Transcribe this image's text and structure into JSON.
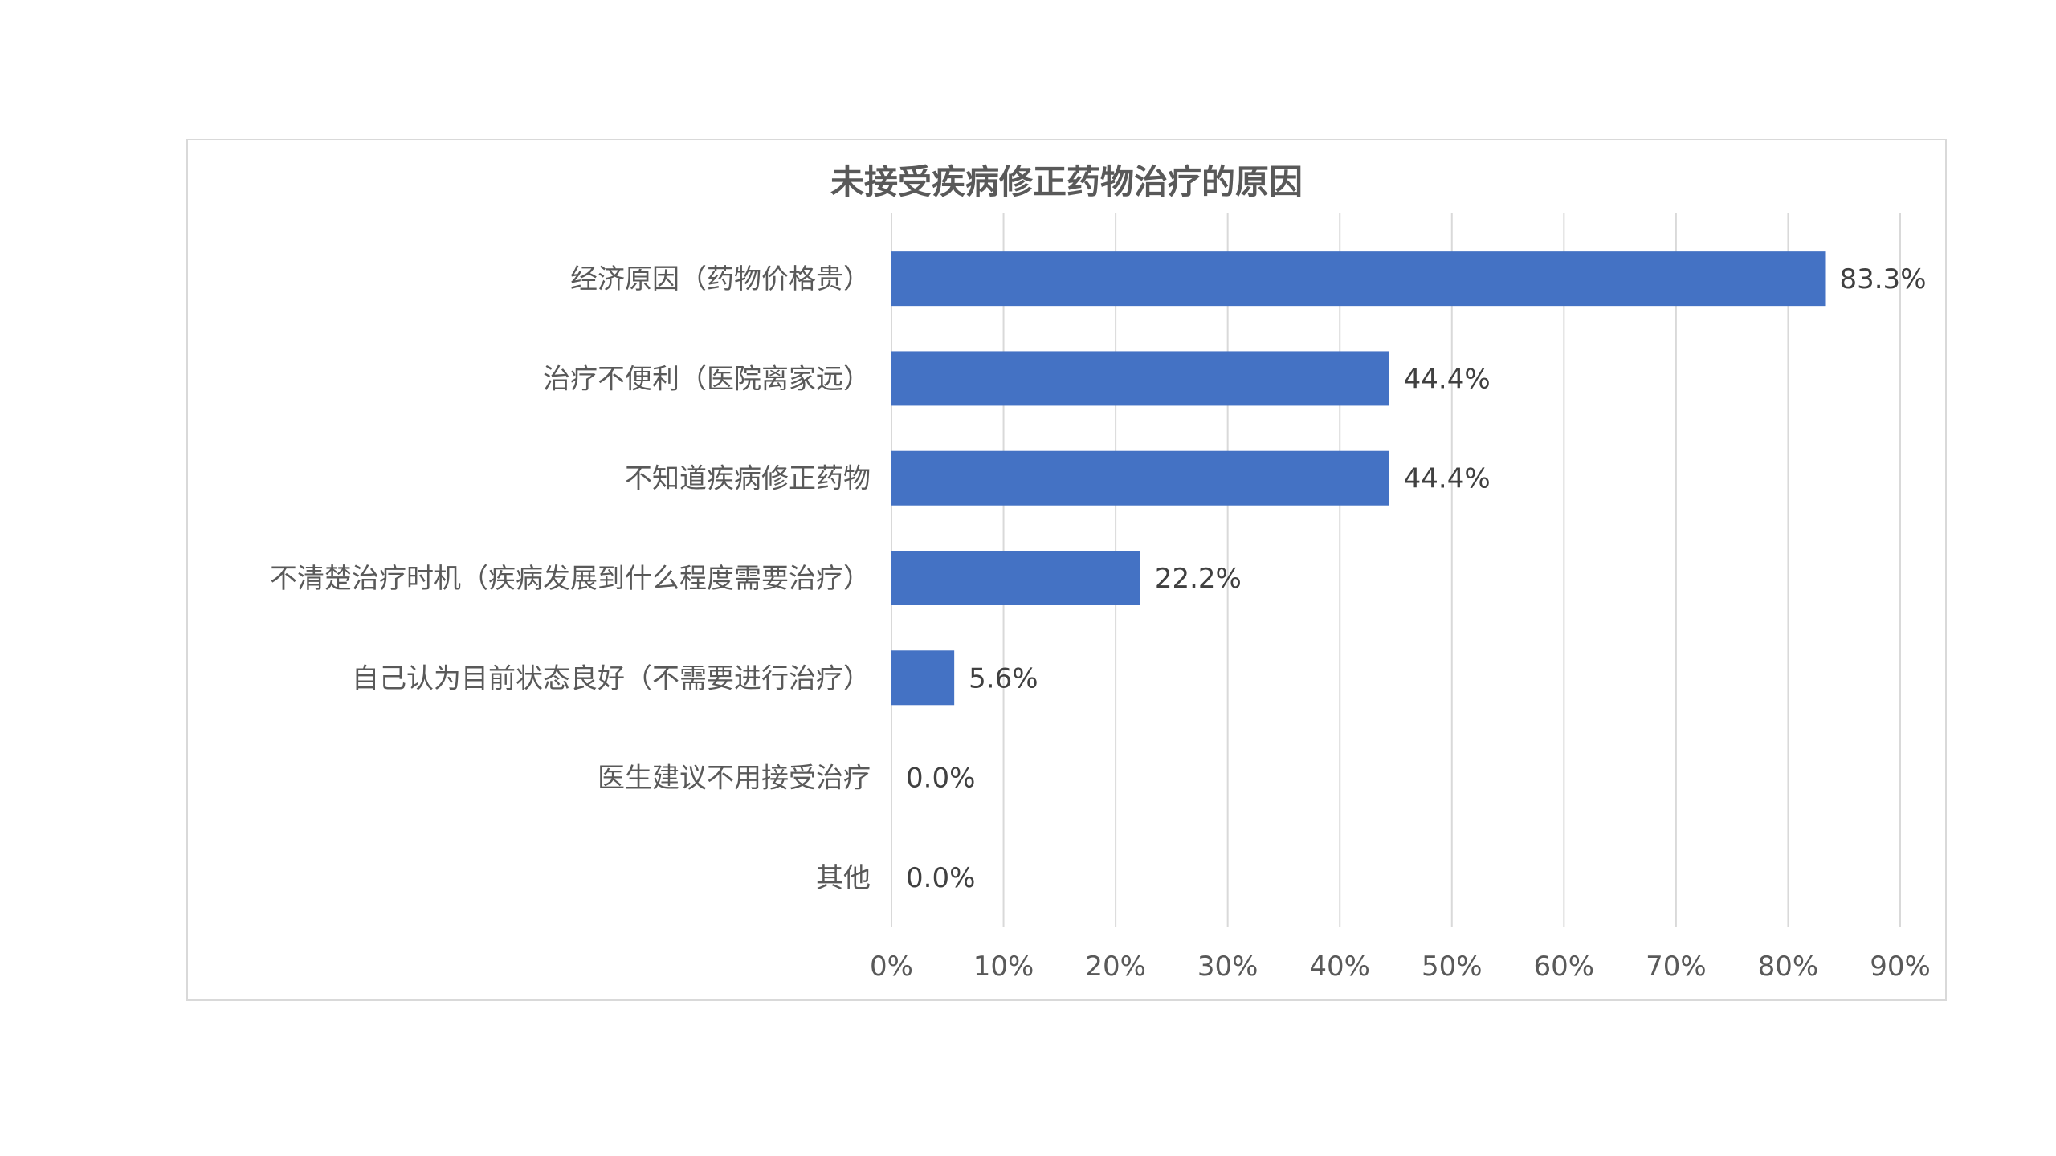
{
  "chart_data": {
    "type": "bar",
    "orientation": "horizontal",
    "title": "未接受疾病修正药物治疗的原因",
    "xlabel": "",
    "ylabel": "",
    "categories": [
      "经济原因（药物价格贵）",
      "治疗不便利（医院离家远）",
      "不知道疾病修正药物",
      "不清楚治疗时机（疾病发展到什么程度需要治疗）",
      "自己认为目前状态良好（不需要进行治疗）",
      "医生建议不用接受治疗",
      "其他"
    ],
    "values": [
      83.3,
      44.4,
      44.4,
      22.2,
      5.6,
      0.0,
      0.0
    ],
    "data_labels": [
      "83.3%",
      "44.4%",
      "44.4%",
      "22.2%",
      "5.6%",
      "0.0%",
      "0.0%"
    ],
    "xlim": [
      0,
      90
    ],
    "xticks": [
      0,
      10,
      20,
      30,
      40,
      50,
      60,
      70,
      80,
      90
    ],
    "xtick_labels": [
      "0%",
      "10%",
      "20%",
      "30%",
      "40%",
      "50%",
      "60%",
      "70%",
      "80%",
      "90%"
    ],
    "bar_color": "#4472c4",
    "grid": true,
    "grid_color": "#d9d9d9",
    "legend": "none"
  }
}
